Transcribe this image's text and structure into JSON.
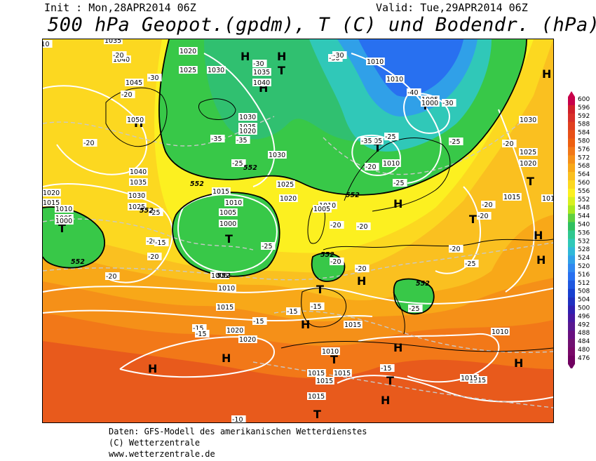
{
  "header": {
    "init": "Init : Mon,28APR2014 06Z",
    "valid": "Valid: Tue,29APR2014 06Z",
    "title": "500 hPa Geopot.(gpdm), T (C) und Bodendr. (hPa)"
  },
  "footer": {
    "line1": "Daten: GFS-Modell des amerikanischen Wetterdienstes",
    "line2": "(C) Wetterzentrale",
    "line3": "www.wetterzentrale.de"
  },
  "legend": {
    "values": [
      "600",
      "596",
      "592",
      "588",
      "584",
      "580",
      "576",
      "572",
      "568",
      "564",
      "560",
      "556",
      "552",
      "548",
      "544",
      "540",
      "536",
      "532",
      "528",
      "524",
      "520",
      "516",
      "512",
      "508",
      "504",
      "500",
      "496",
      "492",
      "488",
      "484",
      "480",
      "476"
    ],
    "colors": [
      "#c8004a",
      "#d0202a",
      "#d8302a",
      "#e04020",
      "#e85018",
      "#ee6010",
      "#f27818",
      "#f59018",
      "#f8a818",
      "#fac020",
      "#fcd820",
      "#fcf020",
      "#d8f020",
      "#a8e820",
      "#60d040",
      "#30c060",
      "#30c890",
      "#30c8b8",
      "#30b8d8",
      "#30a0e8",
      "#3088f0",
      "#2870f0",
      "#2058e0",
      "#1840d0",
      "#2030c0",
      "#3020b0",
      "#4818a0",
      "#581890",
      "#681080",
      "#701070",
      "#780868",
      "#700060"
    ]
  },
  "map": {
    "pressure_labels": [
      "1035",
      "1040",
      "1045",
      "1050",
      "1040",
      "1035",
      "1030",
      "1025",
      "1020",
      "1015",
      "1010",
      "1005",
      "1000",
      "1020",
      "1025",
      "1030",
      "1030",
      "1035",
      "1040",
      "1025",
      "1020",
      "1030",
      "1025",
      "1020",
      "1015",
      "1010",
      "1005",
      "1000",
      "1005",
      "1010",
      "1015",
      "1010",
      "1005",
      "1015",
      "1010",
      "1010",
      "1015",
      "1015",
      "1015",
      "1020",
      "1020",
      "1015",
      "1015",
      "1015",
      "1010",
      "1010",
      "1005",
      "1000",
      "1005",
      "1010",
      "1015",
      "1020",
      "1025",
      "1030",
      "1010"
    ],
    "temp_labels": [
      "-10",
      "-20",
      "-20",
      "-30",
      "-20",
      "-35",
      "-35",
      "-30",
      "-25",
      "-30",
      "-30",
      "-40",
      "-30",
      "-35",
      "-25",
      "-25",
      "-20",
      "-25",
      "-20",
      "-20",
      "-20",
      "-25",
      "-20",
      "-20",
      "-25",
      "-20",
      "-20",
      "-15",
      "-15",
      "-15",
      "-15",
      "-15",
      "-25",
      "-20",
      "-20",
      "-20",
      "-20",
      "-25",
      "-15",
      "-10",
      "-15"
    ],
    "height_labels": [
      "552",
      "552",
      "552",
      "552",
      "552",
      "552",
      "552",
      "552"
    ],
    "high_marker": "H",
    "low_marker": "T"
  }
}
